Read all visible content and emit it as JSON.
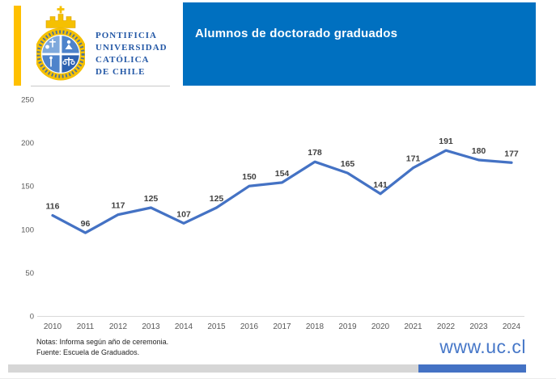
{
  "header": {
    "university_name_lines": [
      "PONTIFICIA",
      "UNIVERSIDAD",
      "CATÓLICA",
      "DE CHILE"
    ],
    "title": "Alumnos de doctorado graduados"
  },
  "chart_data": {
    "type": "line",
    "title": "Alumnos de doctorado graduados",
    "categories": [
      "2010",
      "2011",
      "2012",
      "2013",
      "2014",
      "2015",
      "2016",
      "2017",
      "2018",
      "2019",
      "2020",
      "2021",
      "2022",
      "2023",
      "2024"
    ],
    "values": [
      116,
      96,
      117,
      125,
      107,
      125,
      150,
      154,
      178,
      165,
      141,
      171,
      191,
      180,
      177
    ],
    "xlabel": "",
    "ylabel": "",
    "ylim": [
      0,
      250
    ],
    "ytick_step": 50,
    "grid": false,
    "legend": "none",
    "data_labels": true,
    "line_color": "#4472C4",
    "data_label_color": "#404040",
    "tick_label_color": "#595959",
    "axis_line_color": "#D9D9D9"
  },
  "footer": {
    "notes": [
      "Notas: Informa según año de ceremonia.",
      "Fuente: Escuela de Graduados."
    ],
    "website": "www.uc.cl"
  },
  "colors": {
    "header_blue": "#0070C0",
    "accent_yellow": "#FFC000",
    "line_blue": "#4472C4",
    "crest_gold": "#F5C002",
    "crest_blue": "#2B63B5",
    "bottom_bar_gray": "#D6D6D6",
    "bottom_bar_blue": "#4472C4"
  }
}
